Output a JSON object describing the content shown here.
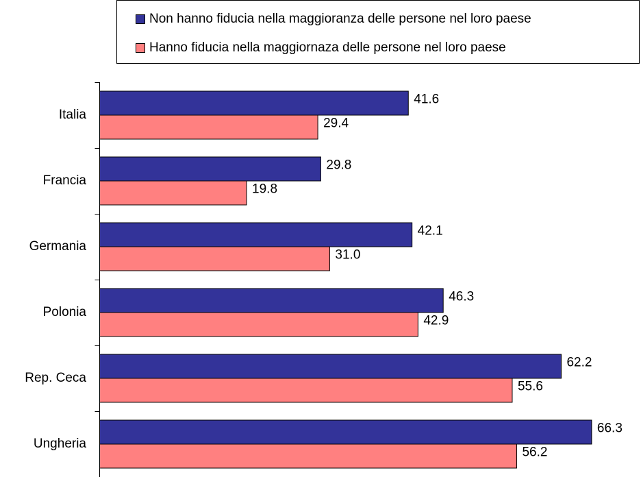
{
  "chart_data": {
    "type": "bar",
    "orientation": "horizontal",
    "categories": [
      "Italia",
      "Francia",
      "Germania",
      "Polonia",
      "Rep. Ceca",
      "Ungheria"
    ],
    "series": [
      {
        "name": "Non hanno fiducia nella maggioranza delle persone nel loro paese",
        "color": "#333399",
        "values": [
          41.6,
          29.8,
          42.1,
          46.3,
          62.2,
          66.3
        ],
        "value_labels": [
          "41.6",
          "29.8",
          "42.1",
          "46.3",
          "62.2",
          "66.3"
        ]
      },
      {
        "name": "Hanno fiducia nella maggiornaza delle persone nel loro paese",
        "color": "#ff8080",
        "values": [
          29.4,
          19.8,
          31.0,
          42.9,
          55.6,
          56.2
        ],
        "value_labels": [
          "29.4",
          "19.8",
          "31.0",
          "42.9",
          "55.6",
          "56.2"
        ]
      }
    ],
    "xlim": [
      0,
      70
    ]
  }
}
